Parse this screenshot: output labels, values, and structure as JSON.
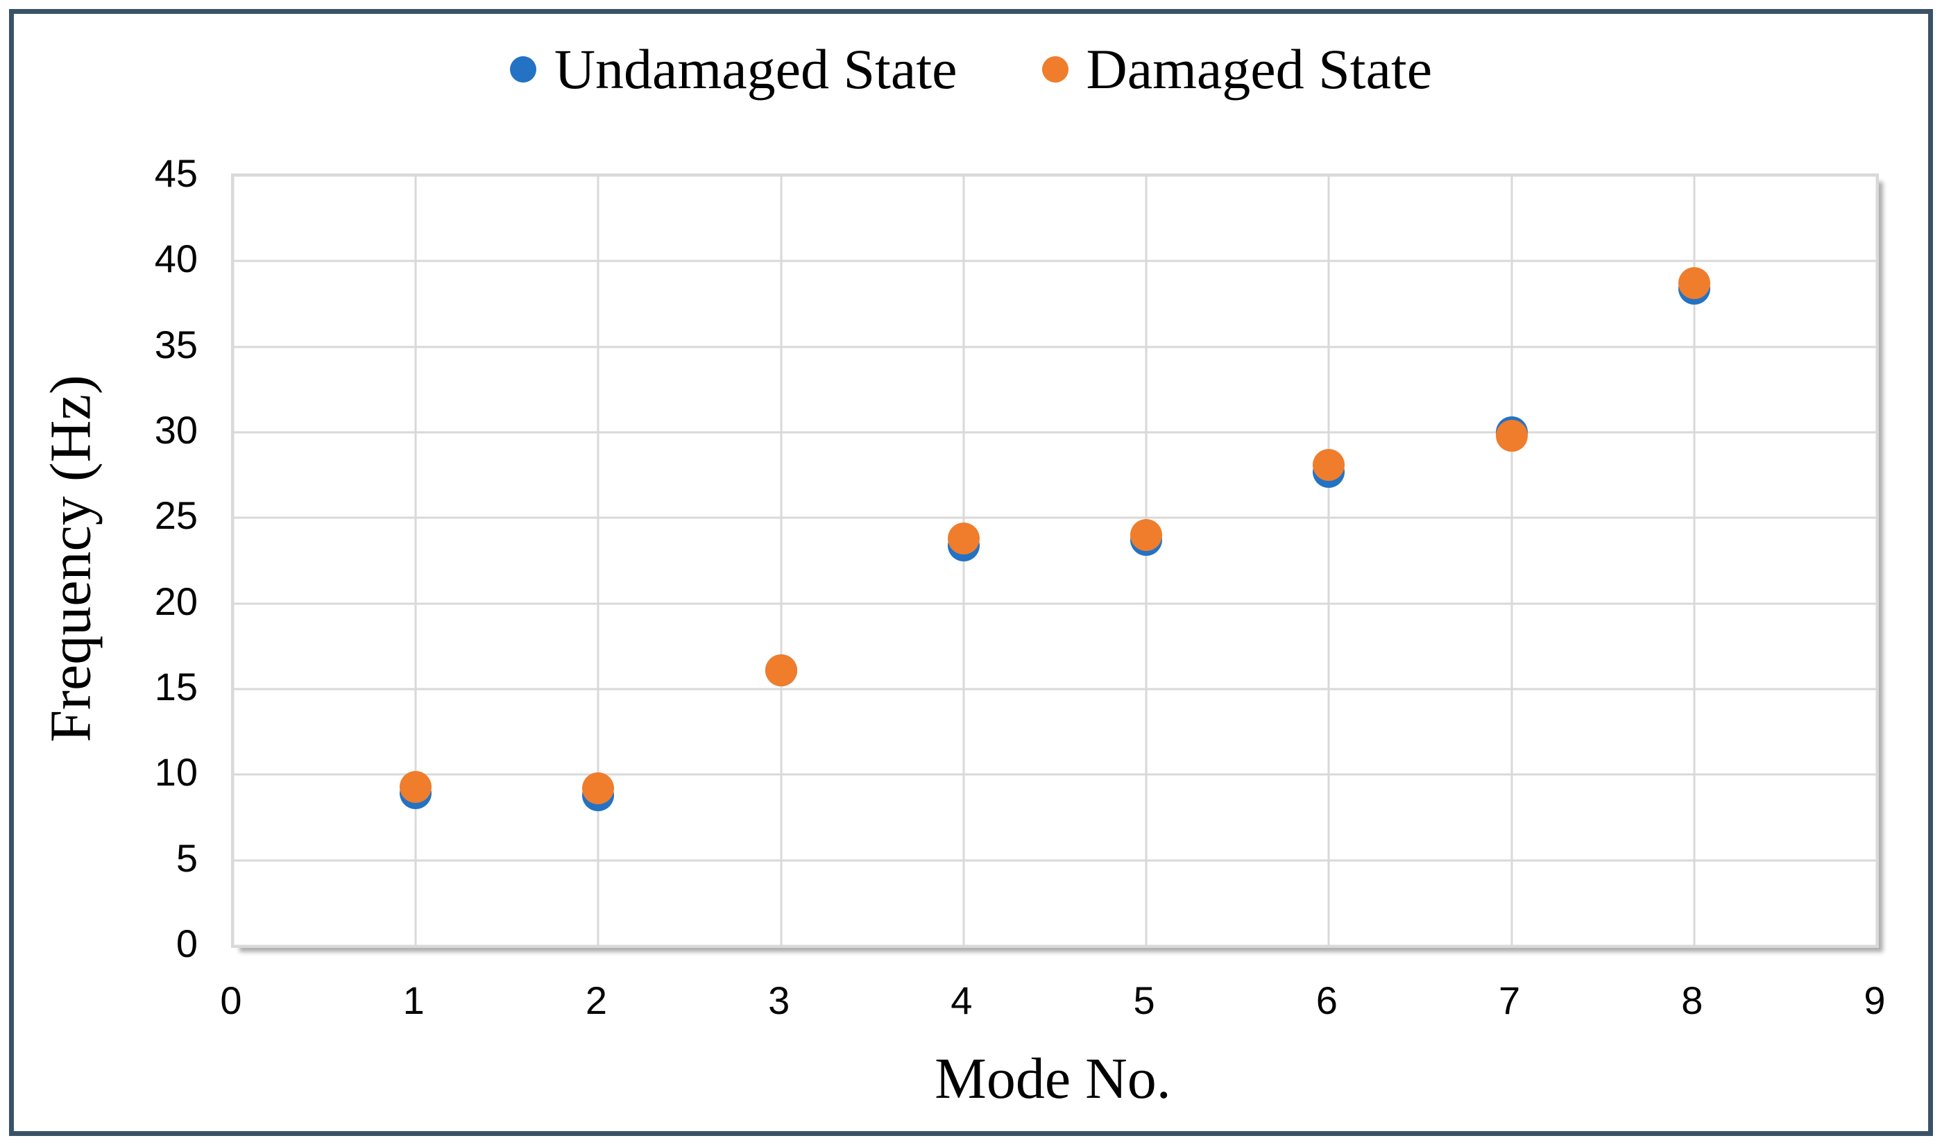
{
  "window": {
    "background_color": "#FFFFFF",
    "frame_border_color": "#3A5268"
  },
  "legend": {
    "position": "top-center",
    "items": [
      {
        "label": "Undamaged State",
        "color": "#2372C4"
      },
      {
        "label": "Damaged State",
        "color": "#EF7D2C"
      }
    ]
  },
  "chart_data": {
    "type": "scatter",
    "title": "",
    "xlabel": "Mode No.",
    "ylabel": "Frequency (Hz)",
    "x": [
      1,
      2,
      3,
      4,
      5,
      6,
      7,
      8
    ],
    "series": [
      {
        "name": "Undamaged State",
        "color": "#2372C4",
        "values": [
          8.9,
          8.8,
          16.1,
          23.4,
          23.7,
          27.7,
          30.0,
          38.4
        ]
      },
      {
        "name": "Damaged State",
        "color": "#EF7D2C",
        "values": [
          9.3,
          9.2,
          16.1,
          23.8,
          24.0,
          28.1,
          29.8,
          38.7
        ]
      }
    ],
    "xlim": [
      0,
      9
    ],
    "ylim": [
      0,
      45
    ],
    "xticks": [
      0,
      1,
      2,
      3,
      4,
      5,
      6,
      7,
      8,
      9
    ],
    "yticks": [
      0,
      5,
      10,
      15,
      20,
      25,
      30,
      35,
      40,
      45
    ],
    "grid": true,
    "gridline_color": "#D9D9D9",
    "plot_border_color": "#D9D9D9",
    "tick_label_color": "#000000",
    "legend_position": "top",
    "marker_size_px": 46
  }
}
